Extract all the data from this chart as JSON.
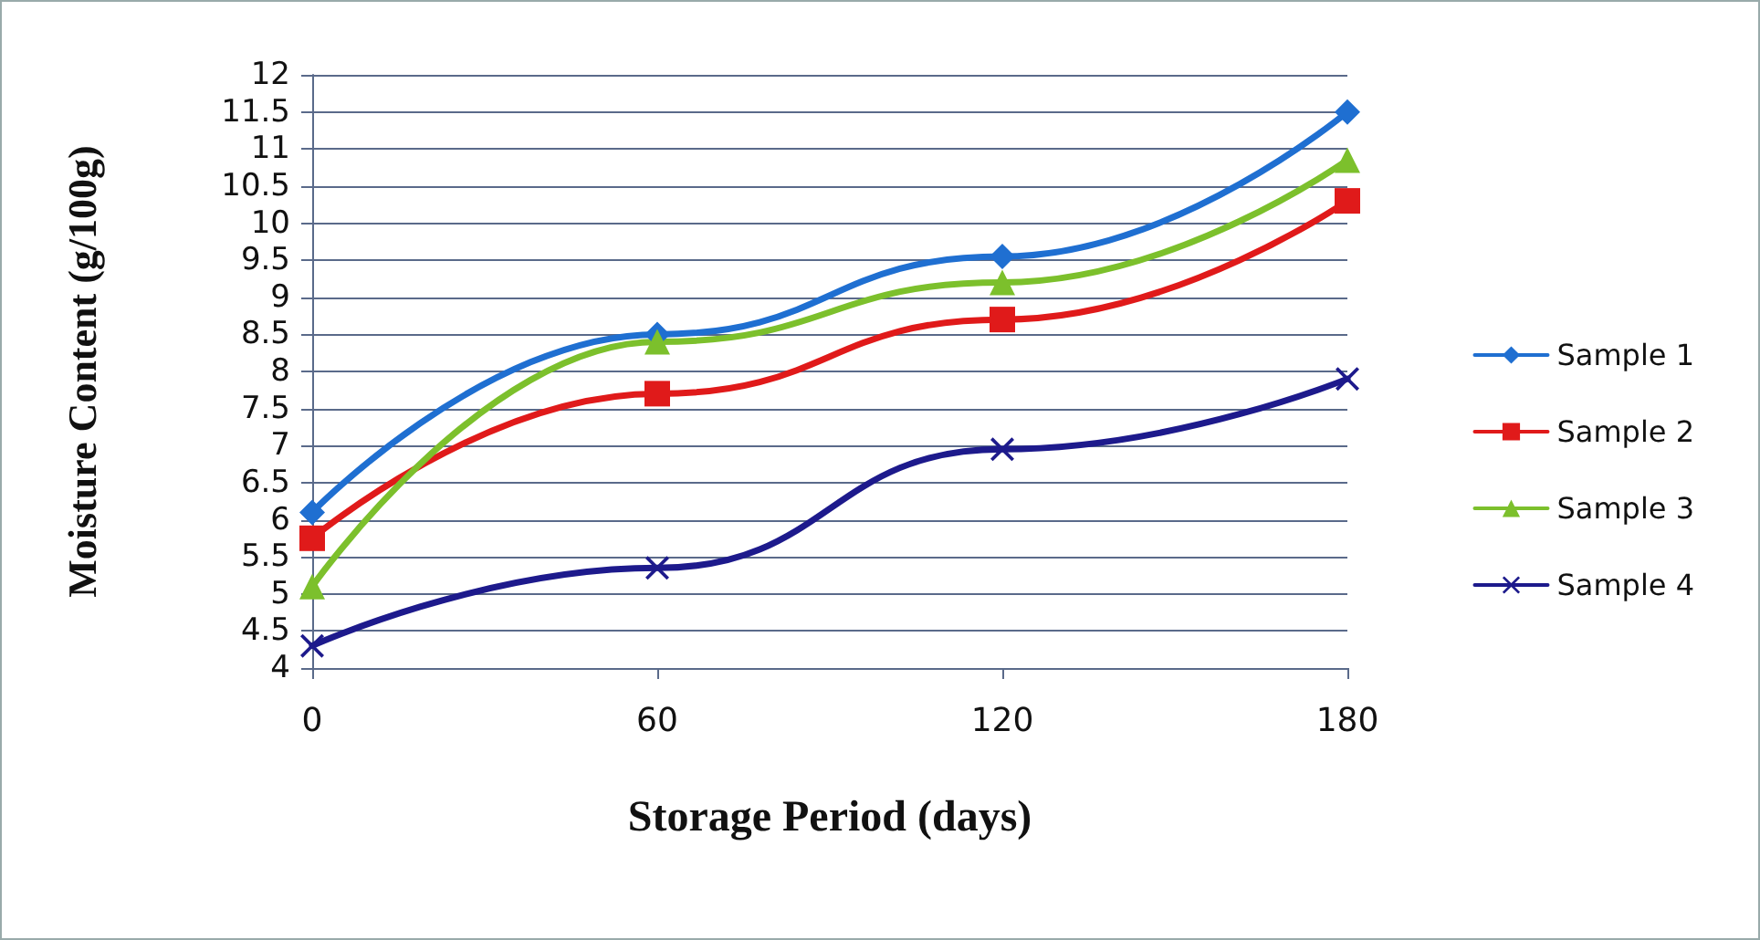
{
  "chart_data": {
    "type": "line",
    "xlabel": "Storage Period (days)",
    "ylabel": "Moisture Content (g/100g)",
    "categories": [
      "0",
      "60",
      "120",
      "180"
    ],
    "series": [
      {
        "name": "Sample 1",
        "color": "#1f6fd1",
        "marker": "diamond",
        "values": [
          6.1,
          8.5,
          9.55,
          11.5
        ]
      },
      {
        "name": "Sample 2",
        "color": "#e01a1a",
        "marker": "square",
        "values": [
          5.75,
          7.7,
          8.7,
          10.3
        ]
      },
      {
        "name": "Sample 3",
        "color": "#7cc02c",
        "marker": "triangle",
        "values": [
          5.1,
          8.4,
          9.2,
          10.85
        ]
      },
      {
        "name": "Sample 4",
        "color": "#1d1a8c",
        "marker": "cross",
        "values": [
          4.3,
          5.35,
          6.95,
          7.9
        ]
      }
    ],
    "ylim": [
      4,
      12
    ],
    "yticks": [
      4,
      4.5,
      5,
      5.5,
      6,
      6.5,
      7,
      7.5,
      8,
      8.5,
      9,
      9.5,
      10,
      10.5,
      11,
      11.5,
      12
    ],
    "grid": "y",
    "legend": "right",
    "line_style": "solid"
  }
}
